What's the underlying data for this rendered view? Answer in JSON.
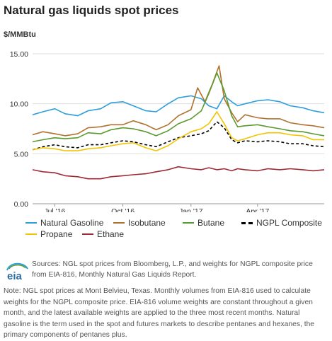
{
  "header": {
    "title": "Natural gas liquids spot prices",
    "unit": "$/MMBtu"
  },
  "footer": {
    "sources": "Sources: NGL spot prices from Bloomberg, L.P., and weights for NGPL composite price from EIA-816, Monthly Natural Gas Liquids Report.",
    "note": "Note: NGL spot prices at Mont Belvieu, Texas. Monthly volumes from EIA-816 used to calculate weights for the NGPL composite price. EIA-816 volume weights are constant throughout a given month, and the latest available weights are applied to the three most recent months. Natural gasoline is the term used in the spot and futures markets to describe pentanes and hexanes, the primary components of pentanes plus.",
    "logo_text": "eia"
  },
  "chart_data": {
    "type": "line",
    "title": "Natural gas liquids spot prices",
    "ylabel": "$/MMBtu",
    "ylim": [
      0,
      15
    ],
    "yticks": [
      "0.00",
      "5.00",
      "10.00",
      "15.00"
    ],
    "xlim": [
      "2016-06-01",
      "2017-06-30"
    ],
    "xticks": [
      {
        "date": "2016-07-01",
        "label": "Jul '16"
      },
      {
        "date": "2016-10-01",
        "label": "Oct '16"
      },
      {
        "date": "2017-01-01",
        "label": "Jan '17"
      },
      {
        "date": "2017-04-01",
        "label": "Apr '17"
      }
    ],
    "grid": true,
    "legend_position": "bottom",
    "series": [
      {
        "name": "Natural Gasoline",
        "color": "#2e9fd9",
        "dash": false,
        "points": [
          [
            "2016-06-01",
            8.9
          ],
          [
            "2016-06-15",
            9.2
          ],
          [
            "2016-07-01",
            9.5
          ],
          [
            "2016-07-15",
            9.0
          ],
          [
            "2016-08-01",
            8.8
          ],
          [
            "2016-08-15",
            9.3
          ],
          [
            "2016-09-01",
            9.5
          ],
          [
            "2016-09-15",
            10.1
          ],
          [
            "2016-10-01",
            10.2
          ],
          [
            "2016-10-15",
            9.8
          ],
          [
            "2016-11-01",
            9.3
          ],
          [
            "2016-11-15",
            9.2
          ],
          [
            "2016-12-01",
            10.0
          ],
          [
            "2016-12-15",
            10.6
          ],
          [
            "2017-01-01",
            10.8
          ],
          [
            "2017-01-15",
            10.5
          ],
          [
            "2017-01-25",
            9.8
          ],
          [
            "2017-02-05",
            9.5
          ],
          [
            "2017-02-15",
            10.8
          ],
          [
            "2017-02-25",
            10.2
          ],
          [
            "2017-03-05",
            9.8
          ],
          [
            "2017-03-15",
            10.0
          ],
          [
            "2017-04-01",
            10.3
          ],
          [
            "2017-04-15",
            10.4
          ],
          [
            "2017-05-01",
            10.2
          ],
          [
            "2017-05-15",
            9.8
          ],
          [
            "2017-06-01",
            9.6
          ],
          [
            "2017-06-15",
            9.3
          ],
          [
            "2017-06-30",
            9.1
          ]
        ]
      },
      {
        "name": "Isobutane",
        "color": "#b0722e",
        "dash": false,
        "points": [
          [
            "2016-06-01",
            6.9
          ],
          [
            "2016-06-15",
            7.2
          ],
          [
            "2016-07-01",
            7.0
          ],
          [
            "2016-07-15",
            6.8
          ],
          [
            "2016-08-01",
            7.0
          ],
          [
            "2016-08-15",
            7.6
          ],
          [
            "2016-09-01",
            7.7
          ],
          [
            "2016-09-15",
            7.9
          ],
          [
            "2016-10-01",
            7.9
          ],
          [
            "2016-10-15",
            8.3
          ],
          [
            "2016-11-01",
            7.9
          ],
          [
            "2016-11-15",
            7.4
          ],
          [
            "2016-12-01",
            7.9
          ],
          [
            "2016-12-15",
            8.8
          ],
          [
            "2017-01-01",
            9.4
          ],
          [
            "2017-01-10",
            11.6
          ],
          [
            "2017-01-20",
            10.2
          ],
          [
            "2017-01-30",
            12.0
          ],
          [
            "2017-02-08",
            13.8
          ],
          [
            "2017-02-15",
            10.5
          ],
          [
            "2017-02-25",
            9.1
          ],
          [
            "2017-03-05",
            8.2
          ],
          [
            "2017-03-15",
            8.9
          ],
          [
            "2017-04-01",
            8.6
          ],
          [
            "2017-04-15",
            8.5
          ],
          [
            "2017-05-01",
            8.5
          ],
          [
            "2017-05-15",
            8.1
          ],
          [
            "2017-06-01",
            7.9
          ],
          [
            "2017-06-15",
            7.8
          ],
          [
            "2017-06-30",
            7.6
          ]
        ]
      },
      {
        "name": "Butane",
        "color": "#5a9b2f",
        "dash": false,
        "points": [
          [
            "2016-06-01",
            6.2
          ],
          [
            "2016-06-15",
            6.4
          ],
          [
            "2016-07-01",
            6.6
          ],
          [
            "2016-07-15",
            6.5
          ],
          [
            "2016-08-01",
            6.6
          ],
          [
            "2016-08-15",
            7.1
          ],
          [
            "2016-09-01",
            7.0
          ],
          [
            "2016-09-15",
            7.4
          ],
          [
            "2016-10-01",
            7.6
          ],
          [
            "2016-10-15",
            7.5
          ],
          [
            "2016-11-01",
            7.2
          ],
          [
            "2016-11-15",
            6.8
          ],
          [
            "2016-12-01",
            7.3
          ],
          [
            "2016-12-15",
            8.0
          ],
          [
            "2017-01-01",
            8.5
          ],
          [
            "2017-01-15",
            9.3
          ],
          [
            "2017-01-25",
            11.0
          ],
          [
            "2017-02-05",
            13.1
          ],
          [
            "2017-02-15",
            11.3
          ],
          [
            "2017-02-25",
            8.8
          ],
          [
            "2017-03-05",
            7.7
          ],
          [
            "2017-03-15",
            7.8
          ],
          [
            "2017-04-01",
            7.9
          ],
          [
            "2017-04-15",
            7.7
          ],
          [
            "2017-05-01",
            7.5
          ],
          [
            "2017-05-15",
            7.3
          ],
          [
            "2017-06-01",
            7.2
          ],
          [
            "2017-06-15",
            7.0
          ],
          [
            "2017-06-30",
            6.8
          ]
        ]
      },
      {
        "name": "NGPL Composite",
        "color": "#000000",
        "dash": true,
        "points": [
          [
            "2016-06-01",
            5.4
          ],
          [
            "2016-06-15",
            5.7
          ],
          [
            "2016-07-01",
            5.9
          ],
          [
            "2016-07-15",
            5.7
          ],
          [
            "2016-08-01",
            5.6
          ],
          [
            "2016-08-15",
            5.9
          ],
          [
            "2016-09-01",
            5.9
          ],
          [
            "2016-09-15",
            6.1
          ],
          [
            "2016-10-01",
            6.3
          ],
          [
            "2016-10-15",
            6.2
          ],
          [
            "2016-11-01",
            5.9
          ],
          [
            "2016-11-15",
            5.7
          ],
          [
            "2016-12-01",
            6.2
          ],
          [
            "2016-12-15",
            6.6
          ],
          [
            "2017-01-01",
            6.8
          ],
          [
            "2017-01-15",
            7.0
          ],
          [
            "2017-01-25",
            7.3
          ],
          [
            "2017-02-05",
            8.2
          ],
          [
            "2017-02-15",
            7.6
          ],
          [
            "2017-02-25",
            6.4
          ],
          [
            "2017-03-05",
            6.1
          ],
          [
            "2017-03-15",
            6.3
          ],
          [
            "2017-04-01",
            6.2
          ],
          [
            "2017-04-15",
            6.3
          ],
          [
            "2017-05-01",
            6.2
          ],
          [
            "2017-05-15",
            6.0
          ],
          [
            "2017-06-01",
            6.0
          ],
          [
            "2017-06-15",
            5.8
          ],
          [
            "2017-06-30",
            5.7
          ]
        ]
      },
      {
        "name": "Propane",
        "color": "#f2c400",
        "dash": false,
        "points": [
          [
            "2016-06-01",
            5.4
          ],
          [
            "2016-06-15",
            5.6
          ],
          [
            "2016-07-01",
            5.5
          ],
          [
            "2016-07-15",
            5.3
          ],
          [
            "2016-08-01",
            5.3
          ],
          [
            "2016-08-15",
            5.5
          ],
          [
            "2016-09-01",
            5.6
          ],
          [
            "2016-09-15",
            5.8
          ],
          [
            "2016-10-01",
            6.0
          ],
          [
            "2016-10-15",
            6.1
          ],
          [
            "2016-11-01",
            5.6
          ],
          [
            "2016-11-15",
            5.3
          ],
          [
            "2016-12-01",
            5.8
          ],
          [
            "2016-12-15",
            6.5
          ],
          [
            "2017-01-01",
            7.2
          ],
          [
            "2017-01-15",
            7.5
          ],
          [
            "2017-01-25",
            8.0
          ],
          [
            "2017-02-05",
            9.2
          ],
          [
            "2017-02-15",
            8.0
          ],
          [
            "2017-02-25",
            6.6
          ],
          [
            "2017-03-05",
            6.3
          ],
          [
            "2017-03-15",
            6.5
          ],
          [
            "2017-04-01",
            6.9
          ],
          [
            "2017-04-15",
            7.1
          ],
          [
            "2017-05-01",
            7.1
          ],
          [
            "2017-05-15",
            6.9
          ],
          [
            "2017-06-01",
            6.8
          ],
          [
            "2017-06-15",
            6.4
          ],
          [
            "2017-06-30",
            6.4
          ]
        ]
      },
      {
        "name": "Ethane",
        "color": "#9e2a36",
        "dash": false,
        "points": [
          [
            "2016-06-01",
            3.4
          ],
          [
            "2016-06-15",
            3.2
          ],
          [
            "2016-07-01",
            3.1
          ],
          [
            "2016-07-15",
            2.8
          ],
          [
            "2016-08-01",
            2.7
          ],
          [
            "2016-08-15",
            2.5
          ],
          [
            "2016-09-01",
            2.5
          ],
          [
            "2016-09-15",
            2.7
          ],
          [
            "2016-10-01",
            2.8
          ],
          [
            "2016-10-15",
            2.9
          ],
          [
            "2016-11-01",
            3.0
          ],
          [
            "2016-11-15",
            3.2
          ],
          [
            "2016-12-01",
            3.4
          ],
          [
            "2016-12-15",
            3.7
          ],
          [
            "2017-01-01",
            3.5
          ],
          [
            "2017-01-15",
            3.4
          ],
          [
            "2017-01-25",
            3.6
          ],
          [
            "2017-02-05",
            3.4
          ],
          [
            "2017-02-15",
            3.5
          ],
          [
            "2017-02-25",
            3.3
          ],
          [
            "2017-03-05",
            3.5
          ],
          [
            "2017-03-15",
            3.4
          ],
          [
            "2017-04-01",
            3.3
          ],
          [
            "2017-04-15",
            3.5
          ],
          [
            "2017-05-01",
            3.4
          ],
          [
            "2017-05-15",
            3.5
          ],
          [
            "2017-06-01",
            3.4
          ],
          [
            "2017-06-15",
            3.3
          ],
          [
            "2017-06-30",
            3.4
          ]
        ]
      }
    ]
  }
}
